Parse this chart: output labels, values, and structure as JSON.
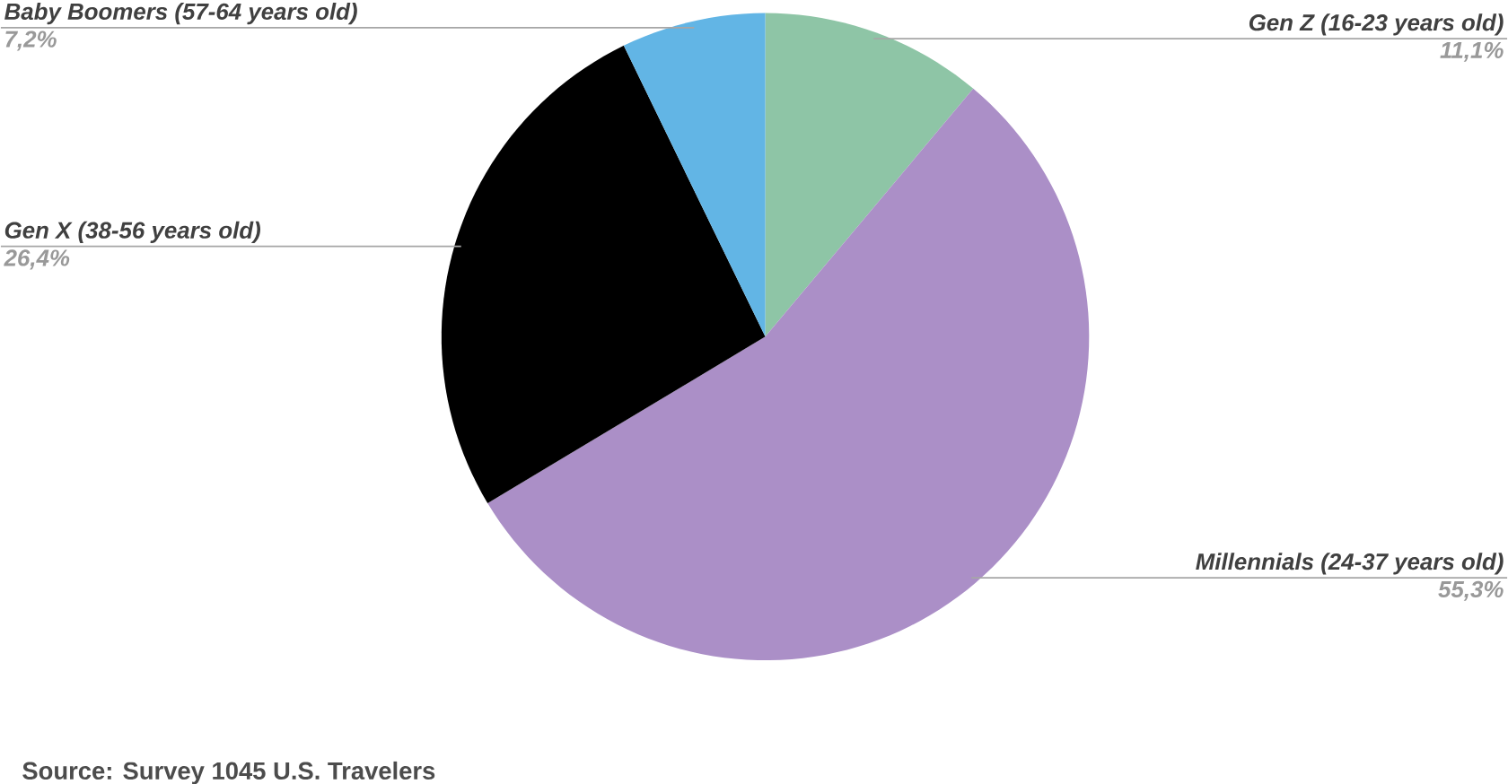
{
  "chart_data": {
    "type": "pie",
    "categories": [
      "Gen Z (16-23 years old)",
      "Millennials (24-37 years old)",
      "Gen X (38-56 years old)",
      "Baby Boomers (57-64 years old)"
    ],
    "values": [
      11.1,
      55.3,
      26.4,
      7.2
    ],
    "value_labels": [
      "11,1%",
      "55,3%",
      "26,4%",
      "7,2%"
    ],
    "colors": [
      "#8ec5a6",
      "#ab8fc7",
      "#000000",
      "#62b5e5"
    ],
    "annotations": [
      "Source: Survey 1045 U.S. Travelers"
    ]
  }
}
